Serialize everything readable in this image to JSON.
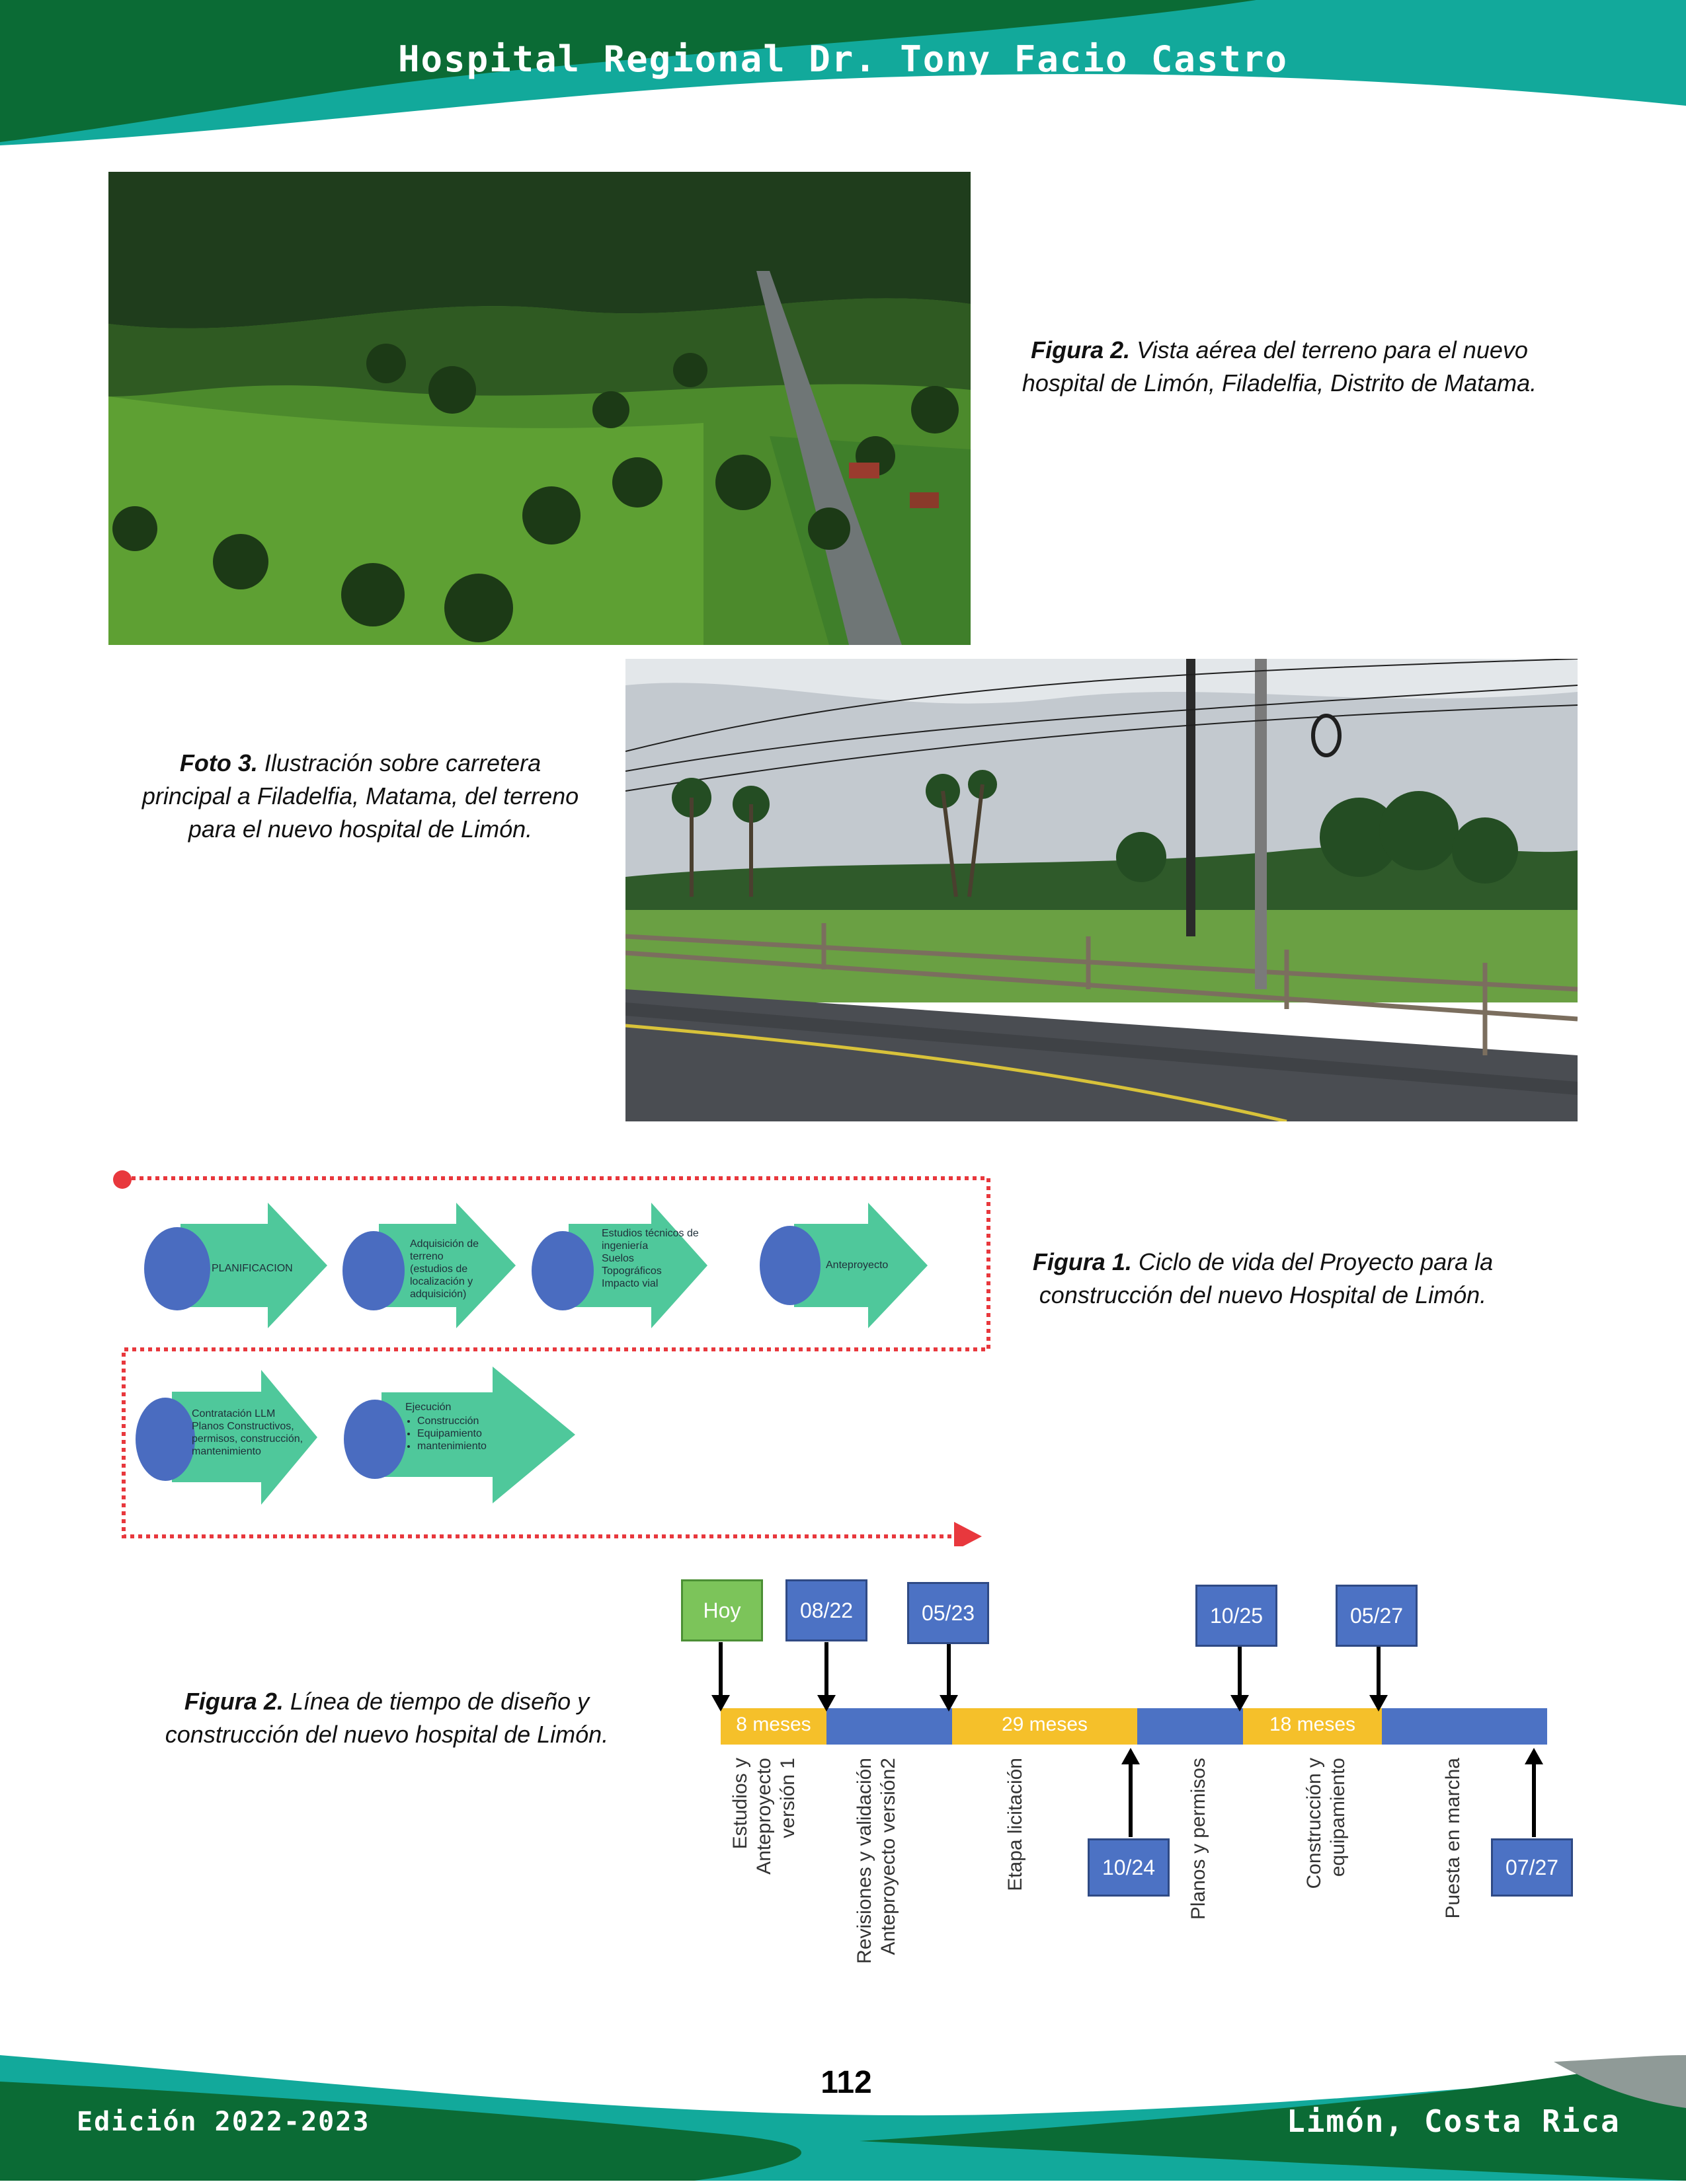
{
  "header": {
    "title": "Hospital Regional Dr. Tony Facio Castro"
  },
  "figure_aerial": {
    "label": "Figura 2.",
    "text": "Vista aérea del terreno para el nuevo hospital de Limón, Filadelfia, Distrito de Matama."
  },
  "photo_road": {
    "label": "Foto 3.",
    "text": "Ilustración sobre carretera principal a Filadelfia, Matama, del terreno para el nuevo hospital de Limón."
  },
  "figure_lifecycle": {
    "label": "Figura 1.",
    "text": "Ciclo de vida del Proyecto para la construcción del nuevo Hospital de Limón.",
    "stages": [
      {
        "title": "PLANIFICACION"
      },
      {
        "title": "Adquisición de terreno (estudios de localización y adquisición)"
      },
      {
        "title": "Estudios técnicos de ingeniería",
        "items": [
          "Suelos",
          "Topográficos",
          "Impacto vial"
        ]
      },
      {
        "title": "Anteproyecto"
      },
      {
        "title": "Contratación LLM",
        "detail": "Planos Constructivos, permisos, construcción, mantenimiento"
      },
      {
        "title": "Ejecución",
        "items": [
          "Construcción",
          "Equipamiento",
          "mantenimiento"
        ]
      }
    ]
  },
  "figure_timeline": {
    "label": "Figura 2.",
    "text": "Línea de tiempo de diseño y construcción del nuevo hospital de Limón.",
    "top_markers": [
      "Hoy",
      "08/22",
      "05/23",
      "10/25",
      "05/27"
    ],
    "bottom_markers": [
      "10/24",
      "07/27"
    ],
    "segments": [
      "8 meses",
      "29 meses",
      "18 meses"
    ],
    "phases": [
      {
        "lines": [
          "Estudios y",
          "Anteproyecto",
          "versión 1"
        ]
      },
      {
        "lines": [
          "Revisiones y validación",
          "Anteproyecto versión2"
        ]
      },
      {
        "lines": [
          "Etapa licitación"
        ]
      },
      {
        "lines": [
          "Planos  y permisos"
        ]
      },
      {
        "lines": [
          "Construcción y",
          "equipamiento"
        ]
      },
      {
        "lines": [
          "Puesta en marcha"
        ]
      }
    ]
  },
  "footer": {
    "page_number": "112",
    "edition": "Edición 2022-2023",
    "place": "Limón, Costa Rica"
  },
  "colors": {
    "green_dark": "#0b6b35",
    "teal": "#12a99b",
    "diagram_green": "#4fc89b",
    "diagram_blue": "#4a6cc0",
    "timeline_blue": "#4c72c4",
    "timeline_yellow": "#f5c02a",
    "today_green": "#7cc45a"
  }
}
